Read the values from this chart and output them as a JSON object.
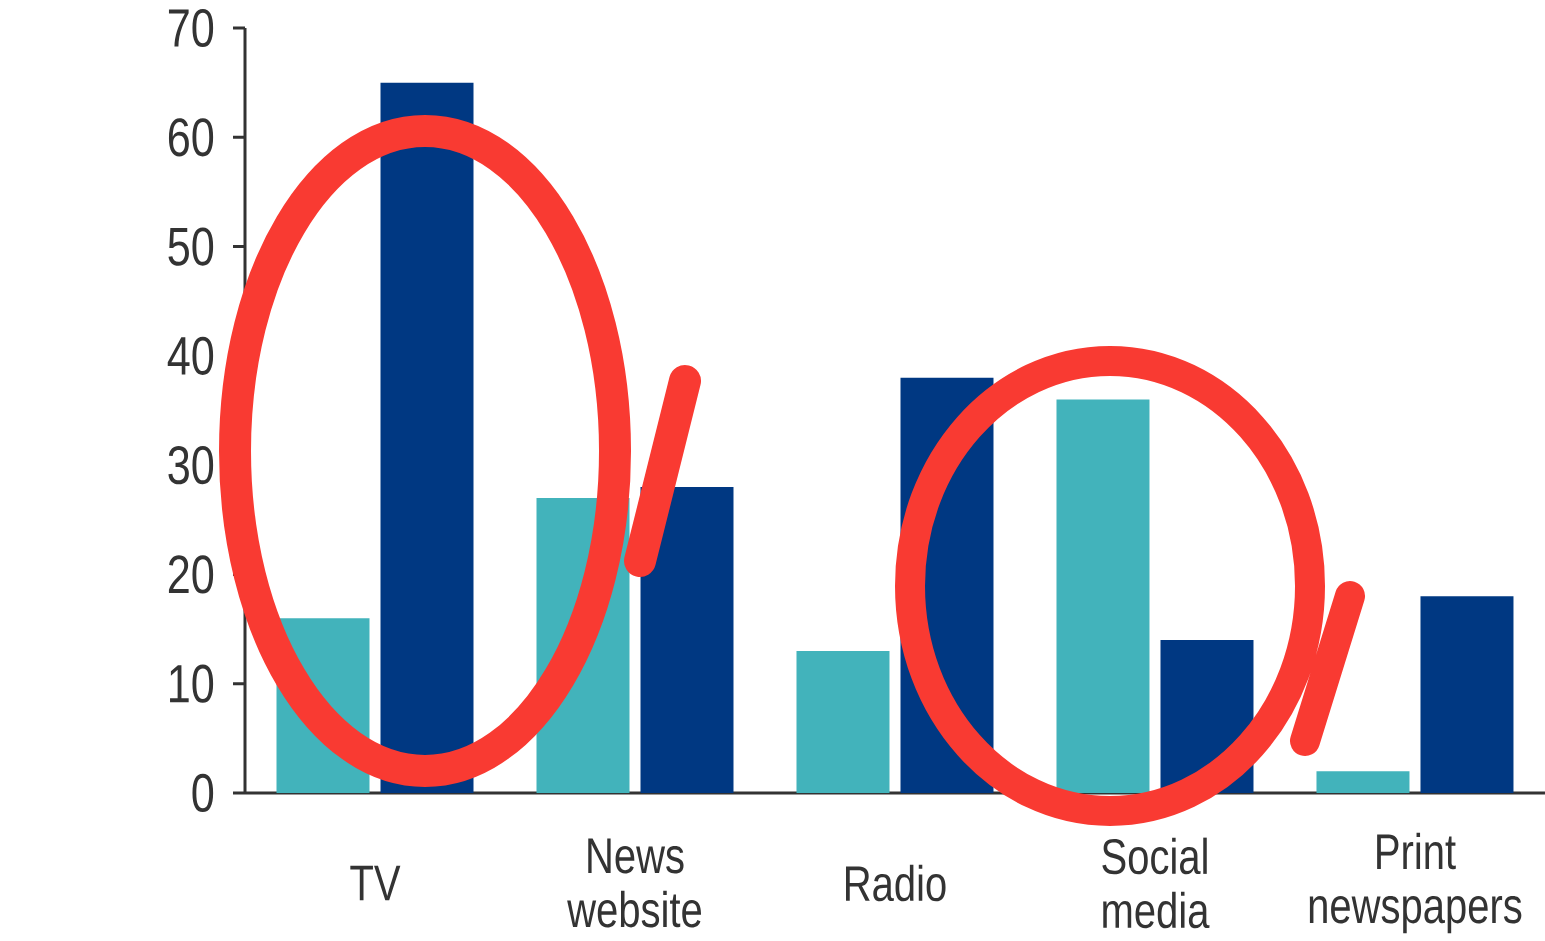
{
  "chart_data": {
    "type": "bar",
    "categories": [
      "TV",
      "News website",
      "Radio",
      "Social media",
      "Print newspapers"
    ],
    "series": [
      {
        "color": "#42b3bb",
        "values": [
          16,
          27,
          13,
          36,
          2
        ]
      },
      {
        "color": "#003882",
        "values": [
          65,
          28,
          38,
          14,
          18
        ]
      }
    ],
    "ylim": [
      0,
      70
    ],
    "yticks": [
      0,
      10,
      20,
      30,
      40,
      50,
      60,
      70
    ]
  }
}
